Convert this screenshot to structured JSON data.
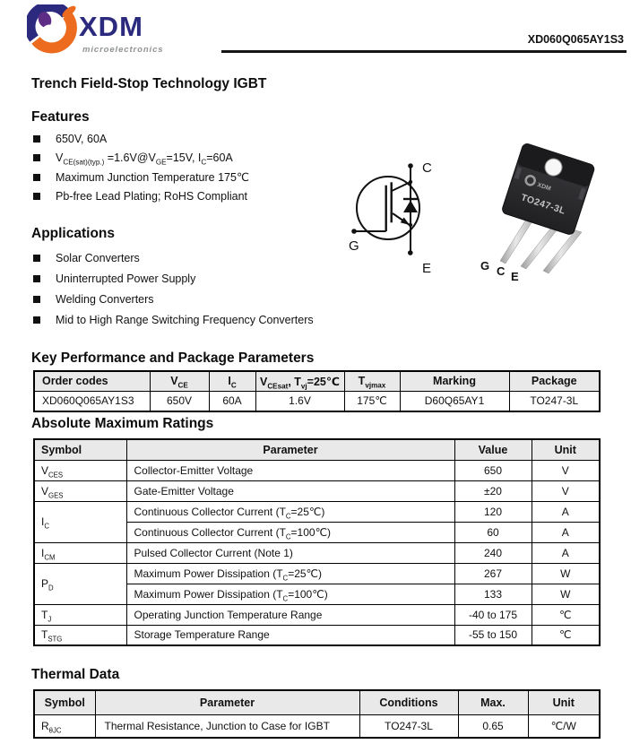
{
  "header": {
    "brand": "XDM",
    "tagline": "microelectronics",
    "part_number": "XD060Q065AY1S3"
  },
  "title": "Trench Field-Stop Technology IGBT",
  "features": {
    "heading": "Features",
    "items": [
      "650V, 60A",
      "V~CE(sat)(typ.)~ =1.6V@V~GE~=15V, I~C~=60A",
      "Maximum Junction Temperature 175℃",
      "Pb-free Lead Plating; RoHS Compliant"
    ]
  },
  "applications": {
    "heading": "Applications",
    "items": [
      "Solar Converters",
      "Uninterrupted Power Supply",
      "Welding Converters",
      "Mid to High Range Switching Frequency Converters"
    ]
  },
  "igbt_symbol": {
    "collector": "C",
    "gate": "G",
    "emitter": "E"
  },
  "package_photo": {
    "marking_line": "TO247-3L",
    "logo_marking": "XDM",
    "pins": [
      "G",
      "C",
      "E"
    ]
  },
  "key_parameters": {
    "heading": "Key Performance and Package Parameters",
    "columns": [
      "Order codes",
      "V~CE~",
      "I~C~",
      "V~CEsat~, T~vj~=25℃",
      "T~vjmax~",
      "Marking",
      "Package"
    ],
    "rows": [
      [
        "XD060Q065AY1S3",
        "650V",
        "60A",
        "1.6V",
        "175℃",
        "D60Q65AY1",
        "TO247-3L"
      ]
    ]
  },
  "absolute_maximum_ratings": {
    "heading": "Absolute Maximum Ratings",
    "columns": [
      "Symbol",
      "Parameter",
      "Value",
      "Unit"
    ],
    "groups": [
      {
        "symbol": "V~CES~",
        "entries": [
          {
            "parameter": "Collector-Emitter Voltage",
            "value": "650",
            "unit": "V"
          }
        ]
      },
      {
        "symbol": "V~GES~",
        "entries": [
          {
            "parameter": "Gate-Emitter Voltage",
            "value": "±20",
            "unit": "V"
          }
        ]
      },
      {
        "symbol": "I~C~",
        "entries": [
          {
            "parameter": "Continuous Collector Current (T~C~=25℃)",
            "value": "120",
            "unit": "A"
          },
          {
            "parameter": "Continuous Collector Current (T~C~=100℃)",
            "value": "60",
            "unit": "A"
          }
        ]
      },
      {
        "symbol": "I~CM~",
        "entries": [
          {
            "parameter": "Pulsed Collector Current (Note 1)",
            "value": "240",
            "unit": "A"
          }
        ]
      },
      {
        "symbol": "P~D~",
        "entries": [
          {
            "parameter": "Maximum Power Dissipation (T~C~=25℃)",
            "value": "267",
            "unit": "W"
          },
          {
            "parameter": "Maximum Power Dissipation (T~C~=100℃)",
            "value": "133",
            "unit": "W"
          }
        ]
      },
      {
        "symbol": "T~J~",
        "entries": [
          {
            "parameter": "Operating Junction Temperature Range",
            "value": "-40 to 175",
            "unit": "℃"
          }
        ]
      },
      {
        "symbol": "T~STG~",
        "entries": [
          {
            "parameter": "Storage Temperature Range",
            "value": "-55 to 150",
            "unit": "℃"
          }
        ]
      }
    ]
  },
  "thermal_data": {
    "heading": "Thermal Data",
    "columns": [
      "Symbol",
      "Parameter",
      "Conditions",
      "Max.",
      "Unit"
    ],
    "rows": [
      [
        "R~θJC~",
        "Thermal Resistance, Junction to Case for IGBT",
        "TO247-3L",
        "0.65",
        "℃/W"
      ]
    ]
  },
  "colors": {
    "brand_navy": "#2b2a7e",
    "brand_orange": "#ec6b1f",
    "brand_purple": "#5e2d86",
    "tagline_gray": "#8f9396",
    "table_header_bg": "#e9e9e9",
    "ink": "#111111"
  }
}
